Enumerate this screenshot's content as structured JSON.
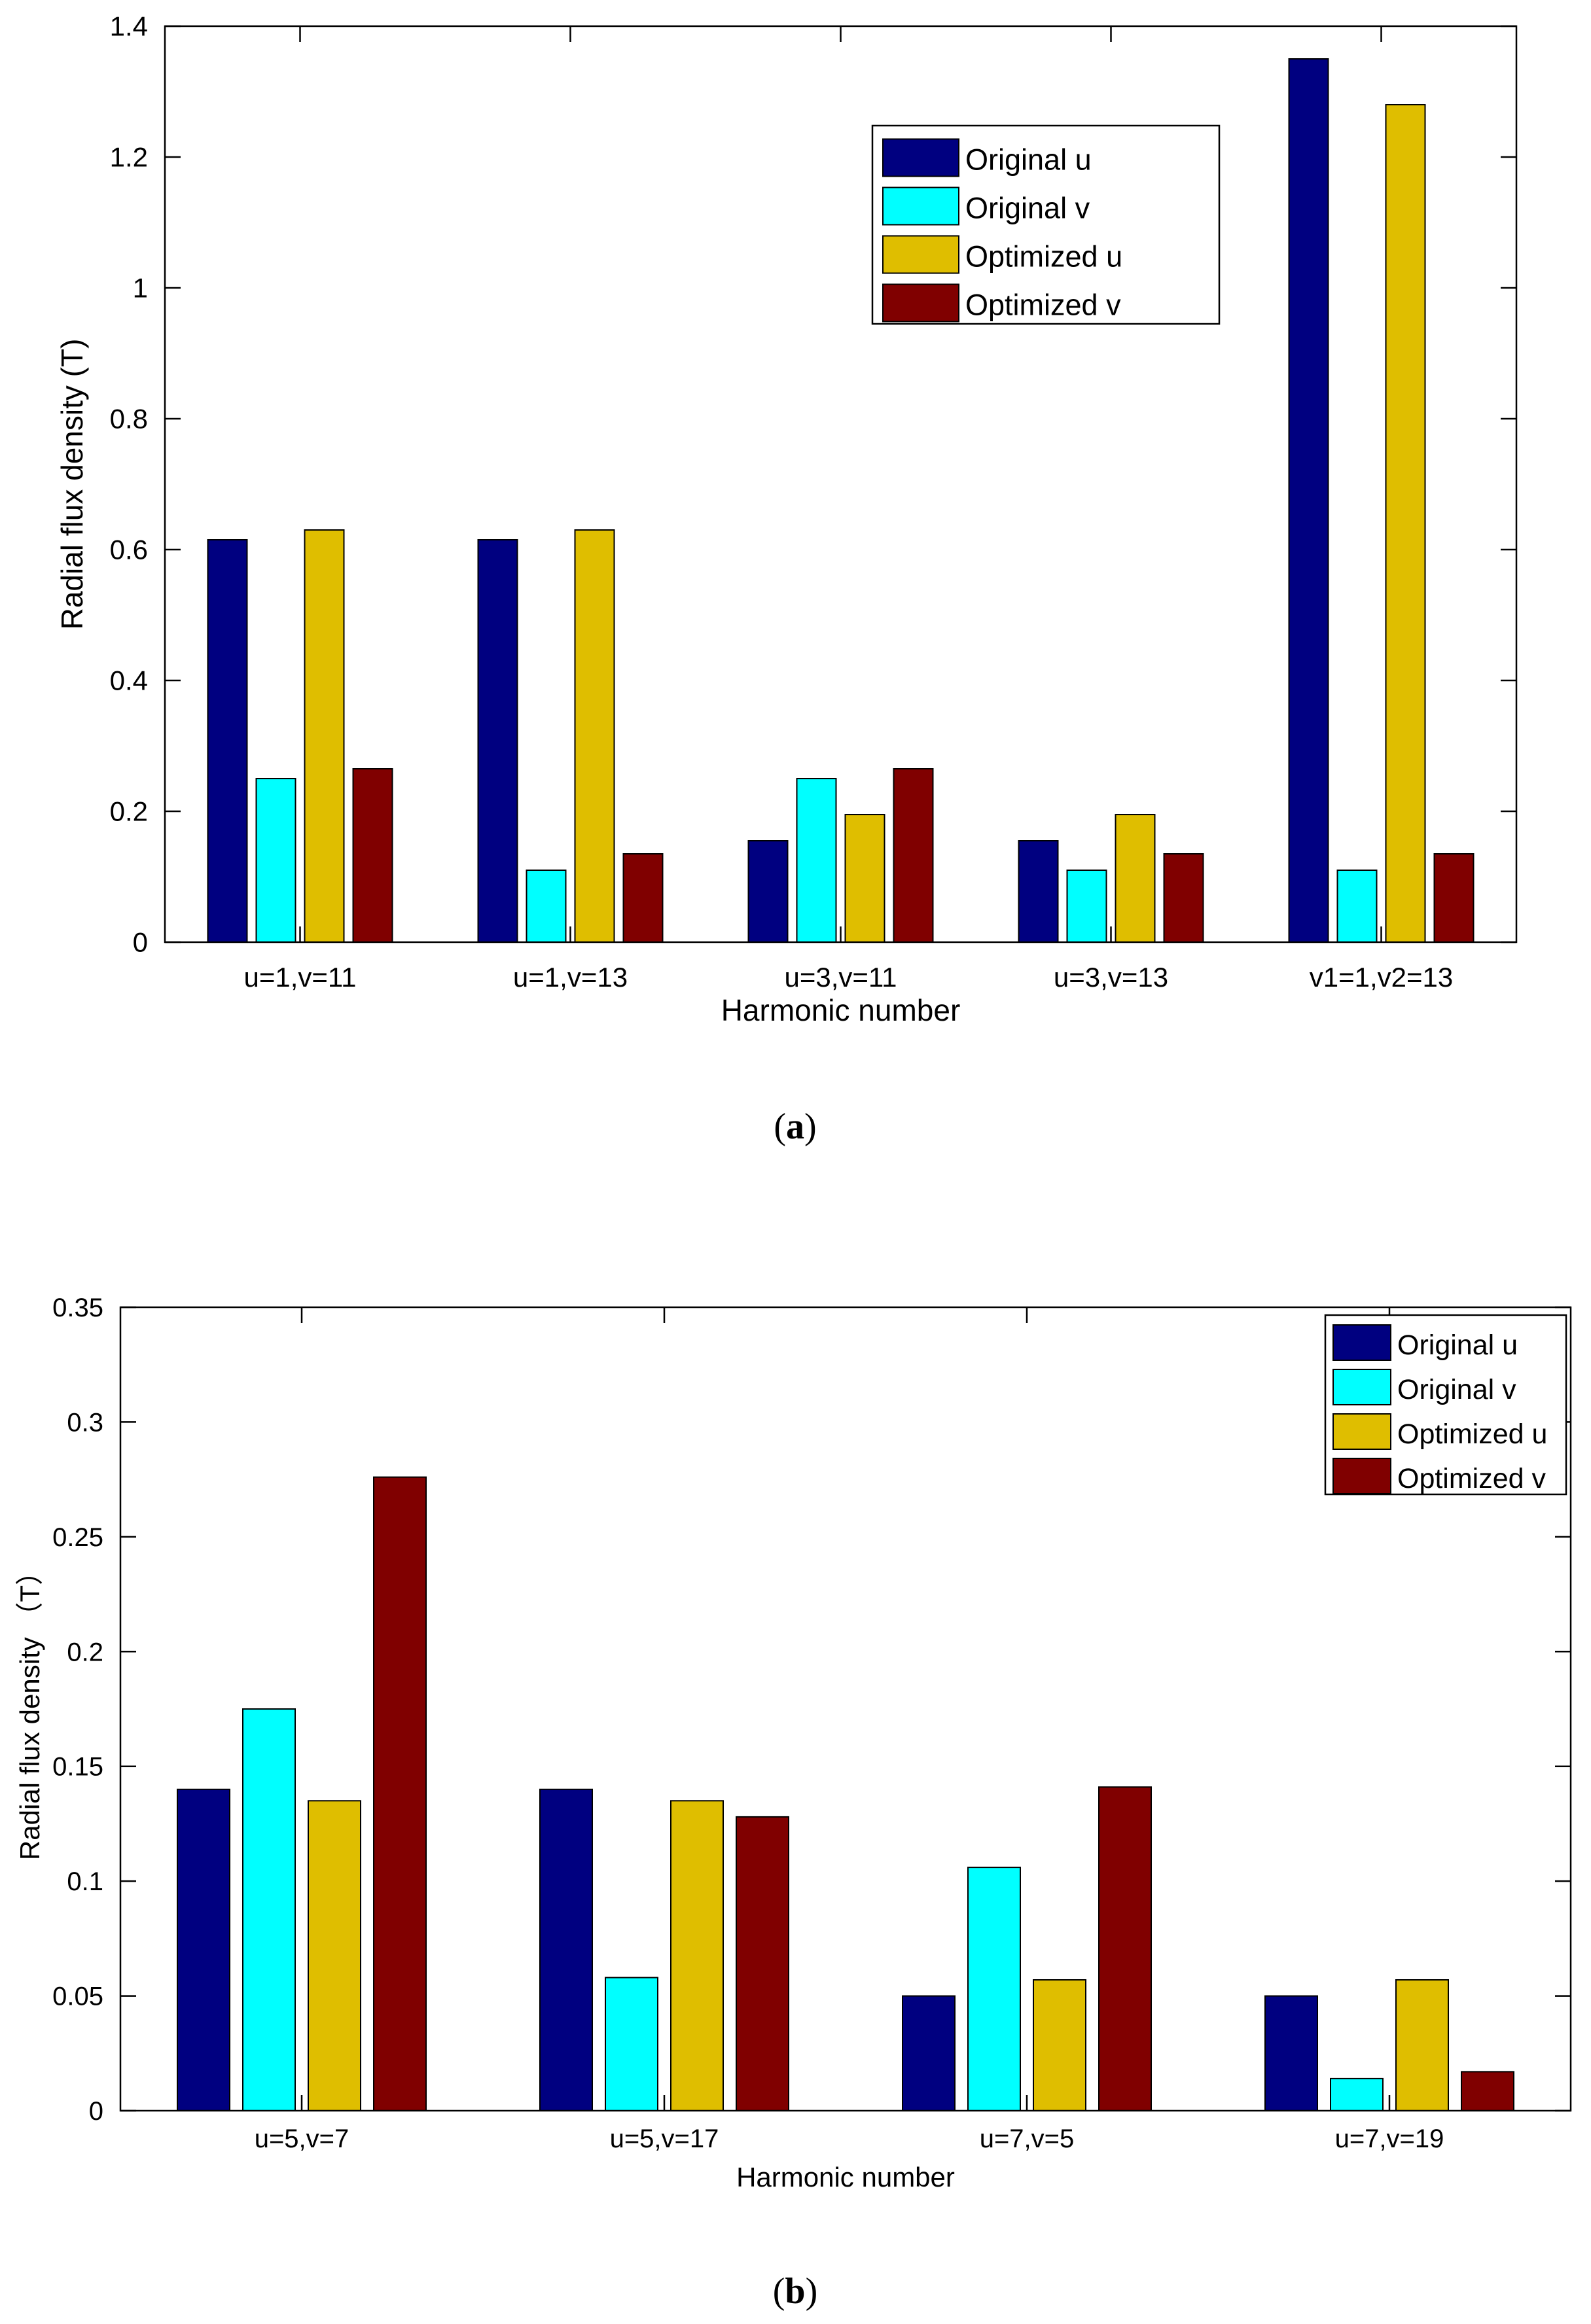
{
  "colors": {
    "original_u": "#000080",
    "original_v": "#00ffff",
    "optimized_u": "#dfbe00",
    "optimized_v": "#800000",
    "axis": "#000000",
    "background": "#ffffff"
  },
  "chart_data": [
    {
      "type": "bar",
      "panel": "a",
      "caption": "(a)",
      "caption_letter": "a",
      "xlabel": "Harmonic number",
      "ylabel": "Radial flux density (T)",
      "ylim": [
        0,
        1.4
      ],
      "yticks": [
        0,
        0.2,
        0.4,
        0.6,
        0.8,
        1,
        1.2,
        1.4
      ],
      "ytick_labels": [
        "0",
        "0.2",
        "0.4",
        "0.6",
        "0.8",
        "1",
        "1.2",
        "1.4"
      ],
      "categories": [
        "u=1,v=11",
        "u=1,v=13",
        "u=3,v=11",
        "u=3,v=13",
        "v1=1,v2=13"
      ],
      "legend_position": "top-right",
      "series": [
        {
          "name": "Original u",
          "color_key": "original_u",
          "values": [
            0.615,
            0.615,
            0.155,
            0.155,
            1.35
          ]
        },
        {
          "name": "Original v",
          "color_key": "original_v",
          "values": [
            0.25,
            0.11,
            0.25,
            0.11,
            0.11
          ]
        },
        {
          "name": "Optimized u",
          "color_key": "optimized_u",
          "values": [
            0.63,
            0.63,
            0.195,
            0.195,
            1.28
          ]
        },
        {
          "name": "Optimized v",
          "color_key": "optimized_v",
          "values": [
            0.265,
            0.135,
            0.265,
            0.135,
            0.135
          ]
        }
      ]
    },
    {
      "type": "bar",
      "panel": "b",
      "caption": "(b)",
      "caption_letter": "b",
      "xlabel": "Harmonic number",
      "ylabel": "Radial flux density （T）",
      "ylim": [
        0,
        0.35
      ],
      "yticks": [
        0,
        0.05,
        0.1,
        0.15,
        0.2,
        0.25,
        0.3,
        0.35
      ],
      "ytick_labels": [
        "0",
        "0.05",
        "0.1",
        "0.15",
        "0.2",
        "0.25",
        "0.3",
        "0.35"
      ],
      "categories": [
        "u=5,v=7",
        "u=5,v=17",
        "u=7,v=5",
        "u=7,v=19"
      ],
      "legend_position": "top-right",
      "series": [
        {
          "name": "Original u",
          "color_key": "original_u",
          "values": [
            0.14,
            0.14,
            0.05,
            0.05
          ]
        },
        {
          "name": "Original v",
          "color_key": "original_v",
          "values": [
            0.175,
            0.058,
            0.106,
            0.014
          ]
        },
        {
          "name": "Optimized u",
          "color_key": "optimized_u",
          "values": [
            0.135,
            0.135,
            0.057,
            0.057
          ]
        },
        {
          "name": "Optimized v",
          "color_key": "optimized_v",
          "values": [
            0.276,
            0.128,
            0.141,
            0.017
          ]
        }
      ]
    }
  ]
}
